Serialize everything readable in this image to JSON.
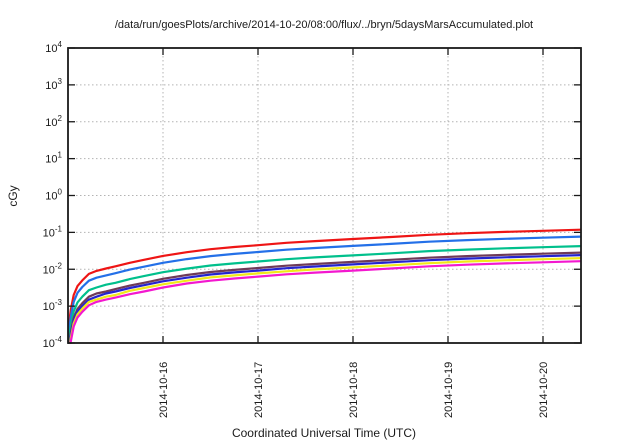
{
  "window": {
    "background": "#ffffff",
    "frame_color": "#1a1a1a",
    "grid_color": "#b3b3b3"
  },
  "chart_data": {
    "type": "line",
    "title": "/data/run/goesPlots/archive/2014-10-20/08:00/flux/../bryn/5daysMarsAccumulated.plot",
    "xlabel": "Coordinated Universal Time (UTC)",
    "ylabel": "cGy",
    "legend": "none",
    "grid": true,
    "y_scale": "log10",
    "y_tick_base": "10",
    "ylim_exponents": [
      -4,
      4
    ],
    "y_tick_exponents": [
      4,
      3,
      2,
      1,
      0,
      -1,
      -2,
      -3,
      -4
    ],
    "x_unit": "days from plot start",
    "x_range_days": [
      0,
      5.4
    ],
    "x_ticks": [
      {
        "day": 1,
        "label": "2014-10-16"
      },
      {
        "day": 2,
        "label": "2014-10-17"
      },
      {
        "day": 3,
        "label": "2014-10-18"
      },
      {
        "day": 4,
        "label": "2014-10-19"
      },
      {
        "day": 5,
        "label": "2014-10-20"
      }
    ],
    "days": [
      0,
      0.015,
      0.03,
      0.06,
      0.1,
      0.15,
      0.22,
      0.3,
      0.4,
      0.5,
      0.65,
      0.8,
      1.0,
      1.25,
      1.5,
      1.75,
      2.0,
      2.3,
      2.6,
      3.0,
      3.4,
      3.8,
      4.2,
      4.6,
      5.0,
      5.4
    ],
    "series": [
      {
        "name": "red",
        "color": "#ee1515",
        "values": [
          0.0001,
          0.0004,
          0.0008,
          0.002,
          0.0035,
          0.005,
          0.0075,
          0.009,
          0.0105,
          0.012,
          0.015,
          0.018,
          0.023,
          0.029,
          0.035,
          0.04,
          0.045,
          0.052,
          0.058,
          0.066,
          0.075,
          0.086,
          0.095,
          0.103,
          0.11,
          0.118
        ]
      },
      {
        "name": "blue",
        "color": "#2470e8",
        "values": [
          6.5e-05,
          0.00026,
          0.00052,
          0.0013,
          0.0023,
          0.0033,
          0.0049,
          0.0059,
          0.0068,
          0.0078,
          0.0098,
          0.0117,
          0.015,
          0.0189,
          0.0228,
          0.026,
          0.0293,
          0.0338,
          0.0377,
          0.0429,
          0.0488,
          0.0559,
          0.0618,
          0.067,
          0.0715,
          0.0767
        ]
      },
      {
        "name": "teal-green",
        "color": "#00c08c",
        "values": [
          3.6e-05,
          0.000144,
          0.00029,
          0.00072,
          0.00126,
          0.0018,
          0.0027,
          0.0032,
          0.0038,
          0.0043,
          0.0054,
          0.0065,
          0.0083,
          0.0104,
          0.0126,
          0.0144,
          0.0162,
          0.0187,
          0.0209,
          0.0238,
          0.027,
          0.031,
          0.0342,
          0.0371,
          0.0396,
          0.0425
        ]
      },
      {
        "name": "dark-purple",
        "color": "#6f3a58",
        "values": [
          2.4e-05,
          9.6e-05,
          0.000192,
          0.00048,
          0.00084,
          0.0012,
          0.0018,
          0.0022,
          0.0025,
          0.0029,
          0.0036,
          0.0043,
          0.0055,
          0.007,
          0.0084,
          0.0096,
          0.0108,
          0.0125,
          0.0139,
          0.0158,
          0.018,
          0.0206,
          0.0228,
          0.0247,
          0.0264,
          0.0283
        ]
      },
      {
        "name": "navy-blue",
        "color": "#2424cf",
        "values": [
          2.05e-05,
          8.2e-05,
          0.000164,
          0.00041,
          0.00072,
          0.001,
          0.0015,
          0.0018,
          0.0022,
          0.0025,
          0.0031,
          0.0037,
          0.0047,
          0.0059,
          0.0072,
          0.0082,
          0.0092,
          0.0107,
          0.0119,
          0.0135,
          0.0154,
          0.0176,
          0.0195,
          0.0211,
          0.0226,
          0.0242
        ]
      },
      {
        "name": "yellow",
        "color": "#f0e818",
        "values": [
          1.7e-05,
          6.8e-05,
          0.000136,
          0.00034,
          0.0006,
          0.00085,
          0.0013,
          0.0015,
          0.0018,
          0.002,
          0.0026,
          0.0031,
          0.0039,
          0.0049,
          0.006,
          0.0068,
          0.0077,
          0.0088,
          0.0099,
          0.0112,
          0.0128,
          0.0146,
          0.0162,
          0.0175,
          0.0187,
          0.0201
        ]
      },
      {
        "name": "magenta",
        "color": "#f318cf",
        "values": [
          1.4e-05,
          5.6e-05,
          0.00011,
          0.00028,
          0.00049,
          0.0007,
          0.00105,
          0.0013,
          0.0015,
          0.0017,
          0.0021,
          0.0025,
          0.0032,
          0.0041,
          0.0049,
          0.0056,
          0.0063,
          0.0073,
          0.0081,
          0.0092,
          0.0105,
          0.012,
          0.0133,
          0.0144,
          0.0154,
          0.0165
        ]
      }
    ]
  }
}
